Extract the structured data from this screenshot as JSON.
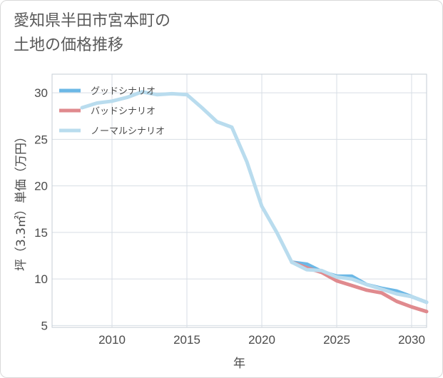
{
  "chart_data": {
    "type": "line",
    "title": "愛知県半田市宮本町の\n土地の価格推移",
    "xlabel": "年",
    "ylabel": "坪（3.3㎡）単価（万円）",
    "xlim": [
      2006,
      2031
    ],
    "ylim": [
      4.8,
      32
    ],
    "xticks": [
      2010,
      2015,
      2020,
      2025,
      2030
    ],
    "yticks": [
      5,
      10,
      15,
      20,
      25,
      30
    ],
    "grid": true,
    "legend_position": "top-left",
    "series": [
      {
        "name": "グッドシナリオ",
        "color": "#6cb8e6",
        "x": [
          2022,
          2023,
          2024,
          2025,
          2026,
          2027,
          2028,
          2029,
          2030,
          2031
        ],
        "y": [
          11.8,
          11.6,
          10.8,
          10.3,
          10.3,
          9.4,
          9.0,
          8.7,
          8.1,
          7.5
        ]
      },
      {
        "name": "バッドシナリオ",
        "color": "#e08a8e",
        "x": [
          2022,
          2023,
          2024,
          2025,
          2026,
          2027,
          2028,
          2029,
          2030,
          2031
        ],
        "y": [
          11.8,
          11.2,
          10.7,
          9.8,
          9.3,
          8.8,
          8.5,
          7.6,
          7.0,
          6.5
        ]
      },
      {
        "name": "ノーマルシナリオ",
        "color": "#b9dcee",
        "x": [
          2008,
          2009,
          2010,
          2011,
          2012,
          2013,
          2014,
          2015,
          2016,
          2017,
          2018,
          2019,
          2020,
          2021,
          2022,
          2023,
          2024,
          2025,
          2026,
          2027,
          2028,
          2029,
          2030,
          2031
        ],
        "y": [
          28.4,
          28.9,
          29.1,
          29.5,
          30.1,
          29.8,
          29.9,
          29.8,
          28.4,
          26.9,
          26.3,
          22.6,
          17.8,
          15.0,
          11.8,
          11.0,
          10.9,
          10.2,
          10.0,
          9.4,
          8.9,
          8.4,
          8.1,
          7.5
        ]
      }
    ]
  }
}
